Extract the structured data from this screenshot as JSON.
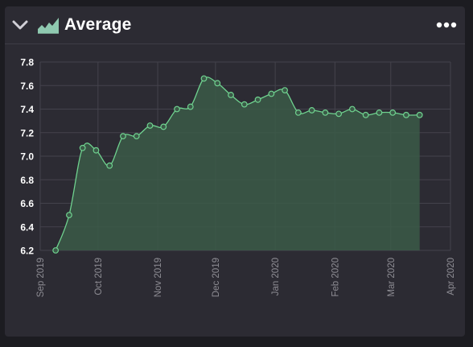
{
  "widget": {
    "title": "Average",
    "collapse_icon": "chevron-down-icon",
    "type_icon": "area-chart-icon",
    "menu_icon": "more-horizontal-icon"
  },
  "colors": {
    "background": "#2c2b33",
    "line": "#6fd28f",
    "fill": "#3b5a48",
    "grid": "#44434c",
    "tick_label": "#ffffff",
    "date_label": "#8d8c93"
  },
  "chart_data": {
    "type": "area",
    "title": "",
    "xlabel": "",
    "ylabel": "",
    "ylim": [
      6.2,
      7.8
    ],
    "y_ticks": [
      7.8,
      7.6,
      7.4,
      7.2,
      7.0,
      6.8,
      6.6,
      6.4,
      6.2
    ],
    "y_tick_labels": [
      "7.8",
      "7.6",
      "7.4",
      "7.2",
      "7.0",
      "6.8",
      "6.6",
      "6.4",
      "6.2"
    ],
    "xlim": [
      "2019-09-01",
      "2020-04-01"
    ],
    "x_ticks": [
      "2019-09-01",
      "2019-10-01",
      "2019-11-01",
      "2019-12-01",
      "2020-01-01",
      "2020-02-01",
      "2020-03-01",
      "2020-04-01"
    ],
    "x_tick_labels": [
      "Sep 2019",
      "Oct 2019",
      "Nov 2019",
      "Dec 2019",
      "Jan 2020",
      "Feb 2020",
      "Mar 2020",
      "Apr 2020"
    ],
    "grid": true,
    "legend": "none",
    "series": [
      {
        "x": [
          "2019-09-09",
          "2019-09-16",
          "2019-09-23",
          "2019-09-30",
          "2019-10-07",
          "2019-10-14",
          "2019-10-21",
          "2019-10-28",
          "2019-11-04",
          "2019-11-11",
          "2019-11-18",
          "2019-11-25",
          "2019-12-02",
          "2019-12-09",
          "2019-12-16",
          "2019-12-23",
          "2019-12-30",
          "2020-01-06",
          "2020-01-13",
          "2020-01-20",
          "2020-01-27",
          "2020-02-03",
          "2020-02-10",
          "2020-02-17",
          "2020-02-24",
          "2020-03-02",
          "2020-03-09",
          "2020-03-16"
        ],
        "y": [
          6.2,
          6.5,
          7.07,
          7.05,
          6.92,
          7.17,
          7.17,
          7.26,
          7.25,
          7.4,
          7.42,
          7.66,
          7.62,
          7.52,
          7.44,
          7.48,
          7.53,
          7.56,
          7.37,
          7.39,
          7.37,
          7.36,
          7.4,
          7.35,
          7.37,
          7.37,
          7.35,
          7.35
        ]
      }
    ]
  }
}
